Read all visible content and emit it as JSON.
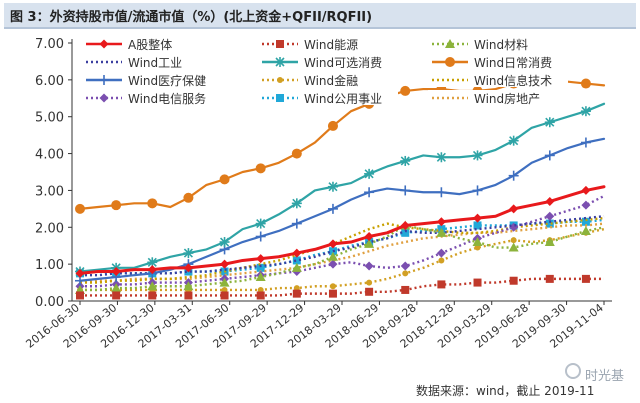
{
  "header": {
    "title": "图 3：外资持股市值/流通市值（%）(北上资金+QFII/RQFII)"
  },
  "footer": {
    "source": "数据来源：wind，截止 2019-11",
    "watermark": "时光基"
  },
  "chart_data": {
    "type": "line",
    "title": "图 3：外资持股市值/流通市值（%）(北上资金+QFII/RQFII)",
    "xlabel": "",
    "ylabel": "",
    "ylim": [
      0,
      7
    ],
    "yticks": [
      "0.00",
      "1.00",
      "2.00",
      "3.00",
      "4.00",
      "5.00",
      "6.00",
      "7.00"
    ],
    "grid": false,
    "legend_position": "top",
    "categories": [
      "2016-06-30",
      "2016-09-30",
      "2016-12-30",
      "2017-03-31",
      "2017-06-30",
      "2017-09-29",
      "2017-12-29",
      "2018-03-29",
      "2018-06-29",
      "2018-09-28",
      "2018-12-28",
      "2019-03-29",
      "2019-06-28",
      "2019-09-30",
      "2019-11-04"
    ],
    "x": [
      0,
      1,
      2,
      3,
      4,
      5,
      6,
      7,
      8,
      9,
      10,
      11,
      12,
      13,
      14,
      15,
      16,
      17,
      18,
      19,
      20,
      21,
      22,
      23,
      24,
      25,
      26,
      27,
      28,
      29
    ],
    "series": [
      {
        "name": "A股整体",
        "color": "#e8191c",
        "style": "solid",
        "marker": "diamond",
        "values": [
          0.75,
          0.8,
          0.8,
          0.85,
          0.85,
          0.9,
          0.9,
          0.95,
          1.0,
          1.1,
          1.15,
          1.2,
          1.3,
          1.4,
          1.55,
          1.6,
          1.75,
          1.85,
          2.05,
          2.1,
          2.15,
          2.2,
          2.25,
          2.3,
          2.5,
          2.6,
          2.7,
          2.85,
          3.0,
          3.1
        ]
      },
      {
        "name": "Wind能源",
        "color": "#c0392b",
        "style": "dotted",
        "marker": "square",
        "values": [
          0.15,
          0.15,
          0.15,
          0.15,
          0.15,
          0.15,
          0.15,
          0.15,
          0.15,
          0.15,
          0.15,
          0.15,
          0.2,
          0.2,
          0.2,
          0.2,
          0.25,
          0.25,
          0.3,
          0.4,
          0.45,
          0.45,
          0.5,
          0.5,
          0.55,
          0.6,
          0.6,
          0.6,
          0.6,
          0.6
        ]
      },
      {
        "name": "Wind材料",
        "color": "#8cb33c",
        "style": "dotted",
        "marker": "triangle",
        "values": [
          0.3,
          0.3,
          0.35,
          0.35,
          0.4,
          0.4,
          0.4,
          0.45,
          0.5,
          0.55,
          0.65,
          0.75,
          0.9,
          1.0,
          1.2,
          1.4,
          1.55,
          1.75,
          2.05,
          1.95,
          1.85,
          1.7,
          1.6,
          1.45,
          1.45,
          1.55,
          1.6,
          1.75,
          1.9,
          2.0
        ]
      },
      {
        "name": "Wind工业",
        "color": "#3a3fa0",
        "style": "dotted",
        "marker": "none",
        "values": [
          0.7,
          0.7,
          0.75,
          0.75,
          0.75,
          0.75,
          0.8,
          0.8,
          0.85,
          0.9,
          0.95,
          1.0,
          1.1,
          1.2,
          1.35,
          1.45,
          1.6,
          1.7,
          1.9,
          1.85,
          1.85,
          1.9,
          1.95,
          2.0,
          2.05,
          2.1,
          2.15,
          2.2,
          2.25,
          2.3
        ]
      },
      {
        "name": "Wind可选消费",
        "color": "#2fa4a6",
        "style": "solid",
        "marker": "star",
        "values": [
          0.8,
          0.85,
          0.9,
          0.9,
          1.05,
          1.2,
          1.3,
          1.4,
          1.6,
          1.95,
          2.1,
          2.35,
          2.65,
          3.0,
          3.1,
          3.2,
          3.45,
          3.65,
          3.8,
          3.95,
          3.9,
          3.9,
          3.95,
          4.1,
          4.35,
          4.7,
          4.85,
          5.0,
          5.15,
          5.35
        ]
      },
      {
        "name": "Wind日常消费",
        "color": "#e07b1a",
        "style": "solid",
        "marker": "circle",
        "values": [
          2.5,
          2.55,
          2.6,
          2.65,
          2.65,
          2.55,
          2.8,
          3.15,
          3.3,
          3.5,
          3.6,
          3.75,
          4.0,
          4.3,
          4.75,
          5.15,
          5.35,
          5.55,
          5.7,
          5.75,
          5.75,
          5.7,
          5.7,
          5.75,
          5.9,
          6.05,
          6.0,
          5.95,
          5.9,
          5.85
        ]
      },
      {
        "name": "Wind医疗保健",
        "color": "#3f6fc0",
        "style": "solid",
        "marker": "plus",
        "values": [
          0.55,
          0.6,
          0.65,
          0.7,
          0.75,
          0.85,
          1.0,
          1.2,
          1.4,
          1.6,
          1.75,
          1.9,
          2.1,
          2.3,
          2.5,
          2.75,
          2.95,
          3.05,
          3.0,
          2.95,
          2.95,
          2.9,
          3.0,
          3.15,
          3.4,
          3.75,
          3.95,
          4.15,
          4.3,
          4.4
        ]
      },
      {
        "name": "Wind金融",
        "color": "#d2a024",
        "style": "dotted",
        "marker": "dot",
        "values": [
          0.3,
          0.3,
          0.3,
          0.3,
          0.3,
          0.3,
          0.3,
          0.3,
          0.3,
          0.3,
          0.3,
          0.35,
          0.35,
          0.4,
          0.4,
          0.45,
          0.5,
          0.6,
          0.75,
          0.9,
          1.1,
          1.3,
          1.45,
          1.55,
          1.65,
          1.6,
          1.65,
          1.75,
          1.85,
          1.95
        ]
      },
      {
        "name": "Wind信息技术",
        "color": "#c8a000",
        "style": "dotted",
        "marker": "none",
        "values": [
          0.5,
          0.5,
          0.55,
          0.55,
          0.6,
          0.6,
          0.65,
          0.7,
          0.8,
          0.9,
          1.0,
          1.1,
          1.25,
          1.4,
          1.55,
          1.75,
          1.95,
          2.1,
          2.0,
          1.95,
          1.9,
          1.85,
          1.85,
          1.9,
          2.0,
          2.05,
          2.1,
          2.15,
          2.2,
          2.25
        ]
      },
      {
        "name": "Wind电信服务",
        "color": "#7b4fb0",
        "style": "dotted",
        "marker": "diamond",
        "values": [
          0.4,
          0.4,
          0.45,
          0.45,
          0.5,
          0.5,
          0.5,
          0.55,
          0.6,
          0.65,
          0.7,
          0.75,
          0.8,
          0.9,
          1.0,
          1.05,
          0.95,
          0.9,
          0.95,
          1.1,
          1.3,
          1.5,
          1.7,
          1.85,
          2.0,
          2.15,
          2.3,
          2.45,
          2.6,
          2.85
        ]
      },
      {
        "name": "Wind公用事业",
        "color": "#21a8d8",
        "style": "dotted",
        "marker": "square",
        "values": [
          0.75,
          0.8,
          0.75,
          0.75,
          0.75,
          0.75,
          0.8,
          0.8,
          0.8,
          0.85,
          0.9,
          1.0,
          1.1,
          1.25,
          1.35,
          1.5,
          1.6,
          1.7,
          1.85,
          1.9,
          1.95,
          2.0,
          2.05,
          2.05,
          2.05,
          2.1,
          2.1,
          2.15,
          2.15,
          2.2
        ]
      },
      {
        "name": "Wind房地产",
        "color": "#e0a040",
        "style": "dotted",
        "marker": "none",
        "values": [
          0.5,
          0.55,
          0.55,
          0.6,
          0.6,
          0.6,
          0.6,
          0.65,
          0.7,
          0.75,
          0.8,
          0.85,
          0.9,
          1.0,
          1.1,
          1.2,
          1.35,
          1.5,
          1.6,
          1.7,
          1.75,
          1.8,
          1.85,
          1.85,
          1.9,
          1.95,
          2.0,
          2.05,
          2.05,
          2.1
        ]
      }
    ]
  }
}
